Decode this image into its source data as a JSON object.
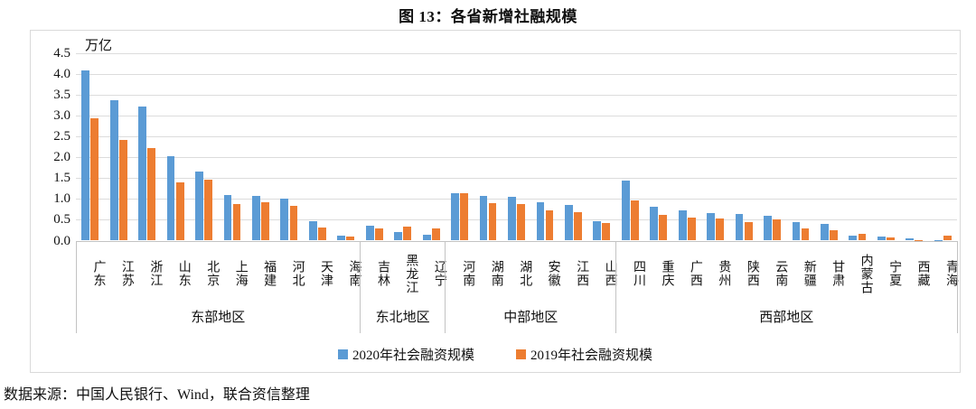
{
  "title": "图 13：各省新增社融规模",
  "source_note": "数据来源：中国人民银行、Wind，联合资信整理",
  "chart_data": {
    "type": "bar",
    "title": "图 13：各省新增社融规模",
    "unit_label": "万亿",
    "ylim": [
      0,
      4.5
    ],
    "ytick_step": 0.5,
    "yticks": [
      "0.0",
      "0.5",
      "1.0",
      "1.5",
      "2.0",
      "2.5",
      "3.0",
      "3.5",
      "4.0",
      "4.5"
    ],
    "grid": true,
    "legend_position": "bottom",
    "categories": [
      "广东",
      "江苏",
      "浙江",
      "山东",
      "北京",
      "上海",
      "福建",
      "河北",
      "天津",
      "海南",
      "吉林",
      "黑龙江",
      "辽宁",
      "河南",
      "湖南",
      "湖北",
      "安徽",
      "江西",
      "山西",
      "四川",
      "重庆",
      "广西",
      "贵州",
      "陕西",
      "云南",
      "新疆",
      "甘肃",
      "内蒙古",
      "宁夏",
      "西藏",
      "青海"
    ],
    "region_groups": [
      {
        "label": "东部地区",
        "count": 10
      },
      {
        "label": "东北地区",
        "count": 3
      },
      {
        "label": "中部地区",
        "count": 6
      },
      {
        "label": "西部地区",
        "count": 12
      }
    ],
    "series": [
      {
        "name": "2020年社会融资规模",
        "color": "#5B9BD5",
        "values": [
          4.07,
          3.36,
          3.22,
          2.02,
          1.66,
          1.1,
          1.07,
          1.01,
          0.47,
          0.11,
          0.35,
          0.2,
          0.14,
          1.14,
          1.08,
          1.06,
          0.93,
          0.86,
          0.46,
          1.44,
          0.82,
          0.72,
          0.65,
          0.64,
          0.6,
          0.45,
          0.39,
          0.12,
          0.09,
          0.06,
          0.01
        ]
      },
      {
        "name": "2019年社会融资规模",
        "color": "#ED7D31",
        "values": [
          2.93,
          2.42,
          2.22,
          1.39,
          1.47,
          0.88,
          0.91,
          0.83,
          0.32,
          0.09,
          0.3,
          0.33,
          0.29,
          1.13,
          0.89,
          0.87,
          0.72,
          0.68,
          0.43,
          0.97,
          0.61,
          0.56,
          0.53,
          0.45,
          0.5,
          0.3,
          0.24,
          0.16,
          0.08,
          0.01,
          0.12
        ]
      }
    ]
  }
}
